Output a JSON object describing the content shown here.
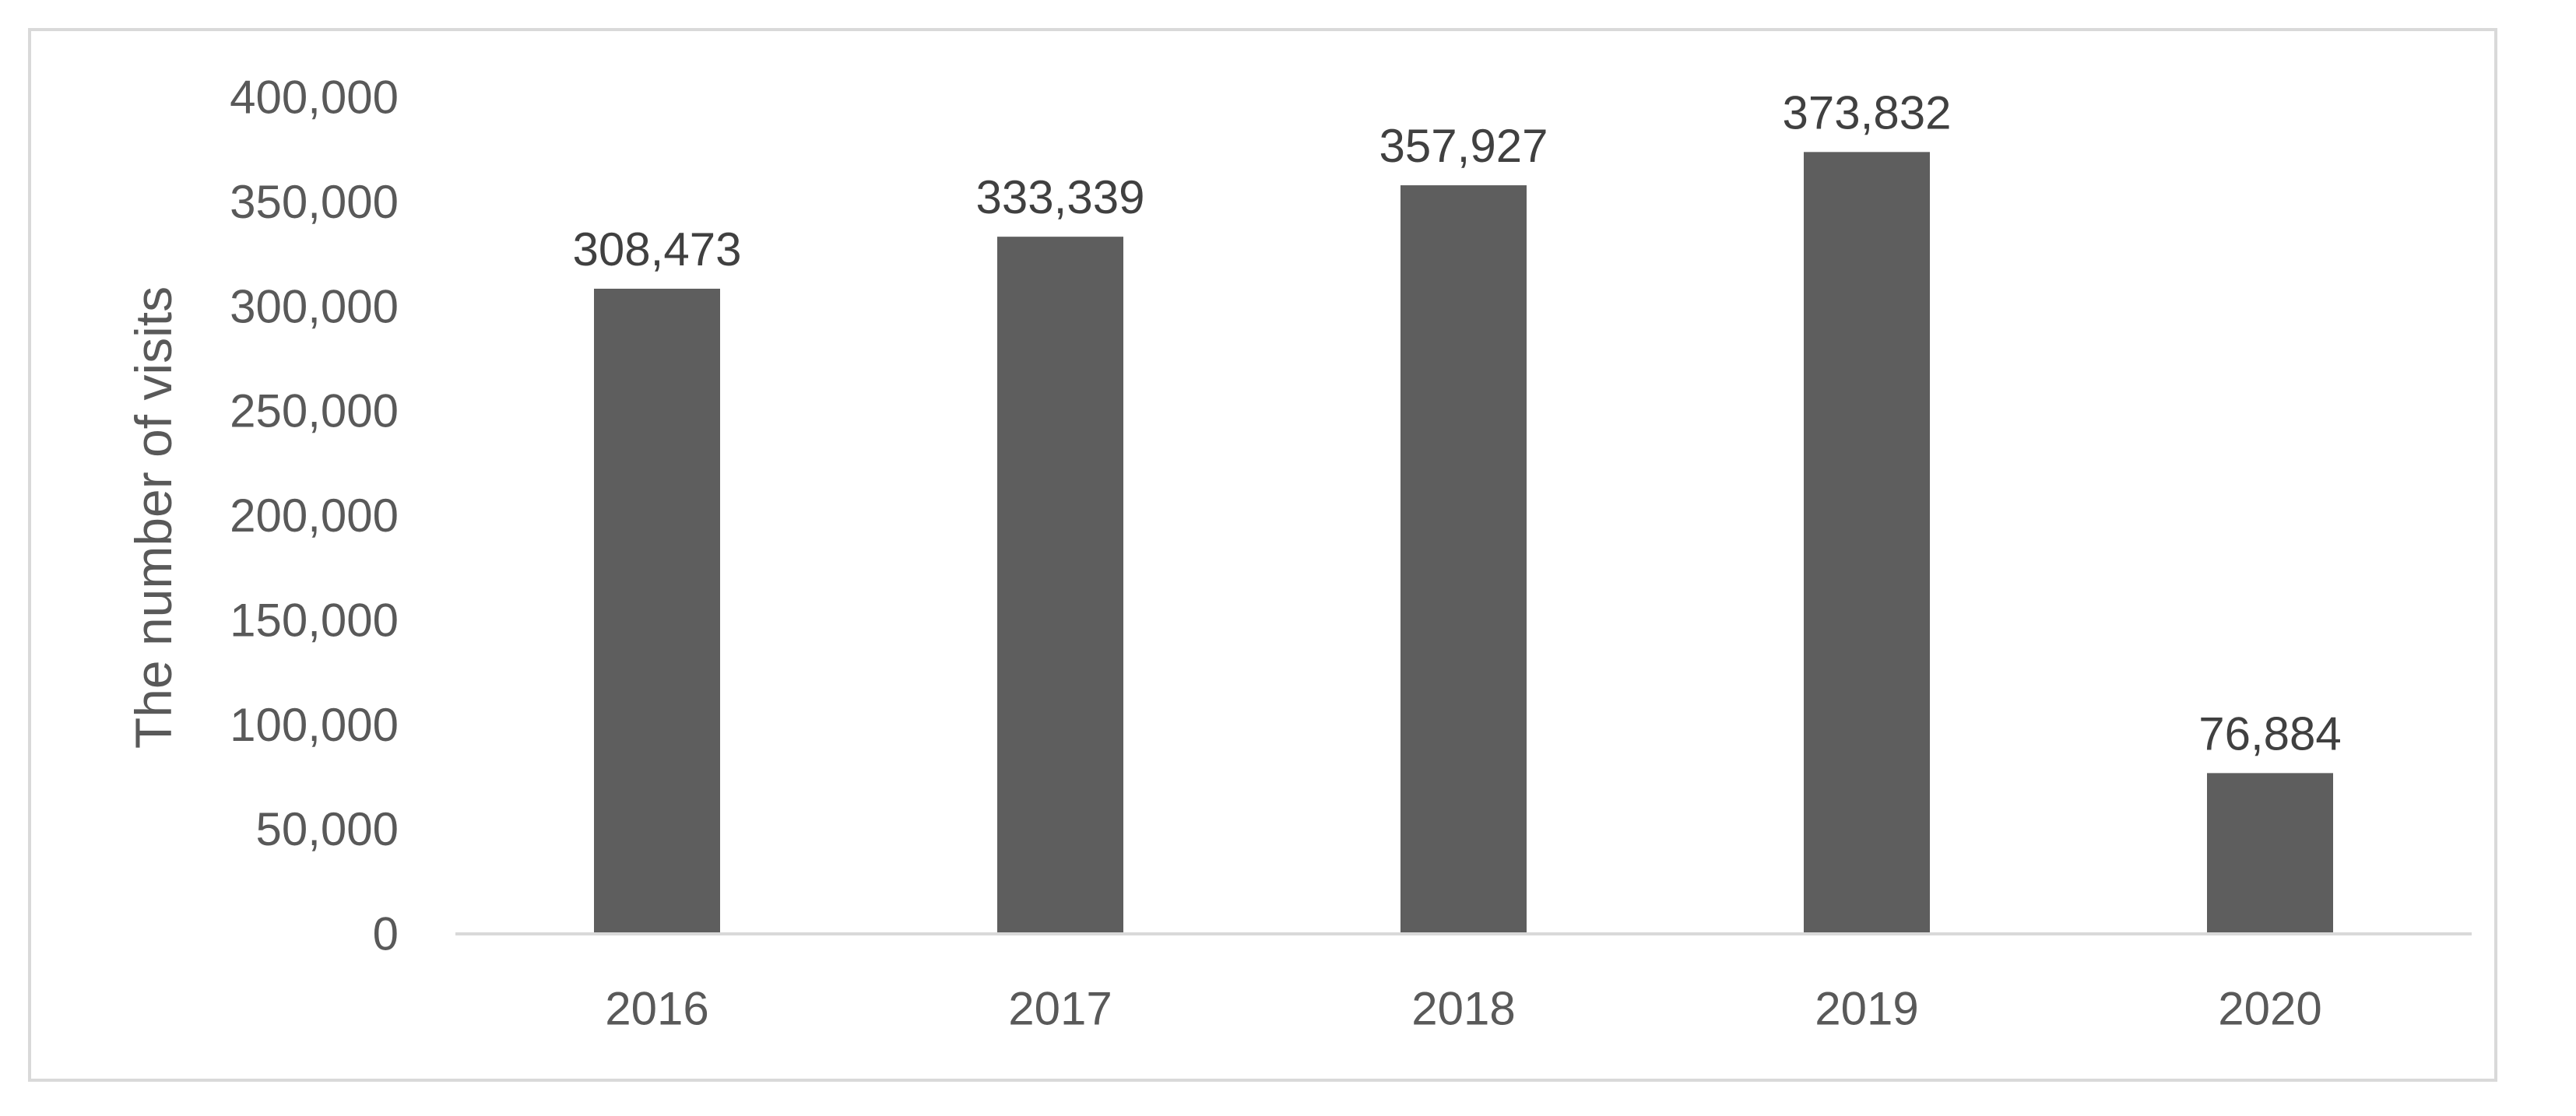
{
  "chart_data": {
    "type": "bar",
    "title": "",
    "xlabel": "",
    "ylabel": "The number of visits",
    "categories": [
      "2016",
      "2017",
      "2018",
      "2019",
      "2020"
    ],
    "values": [
      308473,
      333339,
      357927,
      373832,
      76884
    ],
    "data_labels": [
      "308,473",
      "333,339",
      "357,927",
      "373,832",
      "76,884"
    ],
    "ylim": [
      0,
      400000
    ],
    "yticks": [
      0,
      50000,
      100000,
      150000,
      200000,
      250000,
      300000,
      350000,
      400000
    ],
    "ytick_labels": [
      "0",
      "50,000",
      "100,000",
      "150,000",
      "200,000",
      "250,000",
      "300,000",
      "350,000",
      "400,000"
    ],
    "grid": false,
    "legend": "none",
    "bar_color": "#5e5e5e",
    "text_color": "#595959",
    "axis_color": "#d9d9d9"
  }
}
